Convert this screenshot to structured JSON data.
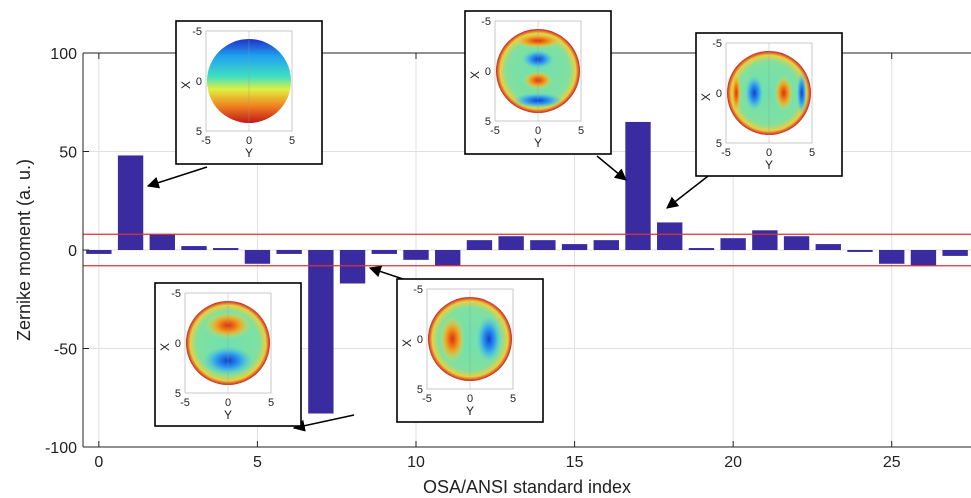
{
  "chart_data": {
    "type": "bar",
    "xlabel": "OSA/ANSI standard index",
    "ylabel": "Zernike moment (a. u.)",
    "xlim": [
      -0.5,
      27.5
    ],
    "ylim": [
      -100,
      100
    ],
    "x_ticks": [
      "0",
      "5",
      "10",
      "15",
      "20",
      "25"
    ],
    "y_ticks": [
      "100",
      "50",
      "0",
      "-50",
      "-100"
    ],
    "grid": true,
    "bar_color": "#3a2ca0",
    "x": [
      0,
      1,
      2,
      3,
      4,
      5,
      6,
      7,
      8,
      9,
      10,
      11,
      12,
      13,
      14,
      15,
      16,
      17,
      18,
      19,
      20,
      21,
      22,
      23,
      24,
      25,
      26,
      27
    ],
    "values": [
      -2,
      48,
      8,
      2,
      1,
      -7,
      -2,
      -83,
      -17,
      -2,
      -5,
      -8,
      5,
      7,
      5,
      3,
      5,
      65,
      14,
      1,
      6,
      10,
      7,
      3,
      -1,
      -7,
      -8,
      -3
    ],
    "threshold_lines": [
      8,
      -8
    ],
    "threshold_color": "#e03030",
    "insets": [
      {
        "index": 1,
        "axis_x_label": "Y",
        "axis_y_label": "X",
        "x_ticks": [
          "-5",
          "0",
          "5"
        ],
        "y_ticks": [
          "-5",
          "0",
          "5"
        ]
      },
      {
        "index": 7,
        "axis_x_label": "Y",
        "axis_y_label": "X",
        "x_ticks": [
          "-5",
          "0",
          "5"
        ],
        "y_ticks": [
          "-5",
          "0",
          "5"
        ]
      },
      {
        "index": 8,
        "axis_x_label": "Y",
        "axis_y_label": "X",
        "x_ticks": [
          "-5",
          "0",
          "5"
        ],
        "y_ticks": [
          "-5",
          "0",
          "5"
        ]
      },
      {
        "index": 17,
        "axis_x_label": "Y",
        "axis_y_label": "X",
        "x_ticks": [
          "-5",
          "0",
          "5"
        ],
        "y_ticks": [
          "-5",
          "0",
          "5"
        ]
      },
      {
        "index": 18,
        "axis_x_label": "Y",
        "axis_y_label": "X",
        "x_ticks": [
          "-5",
          "0",
          "5"
        ],
        "y_ticks": [
          "-5",
          "0",
          "5"
        ]
      }
    ]
  }
}
